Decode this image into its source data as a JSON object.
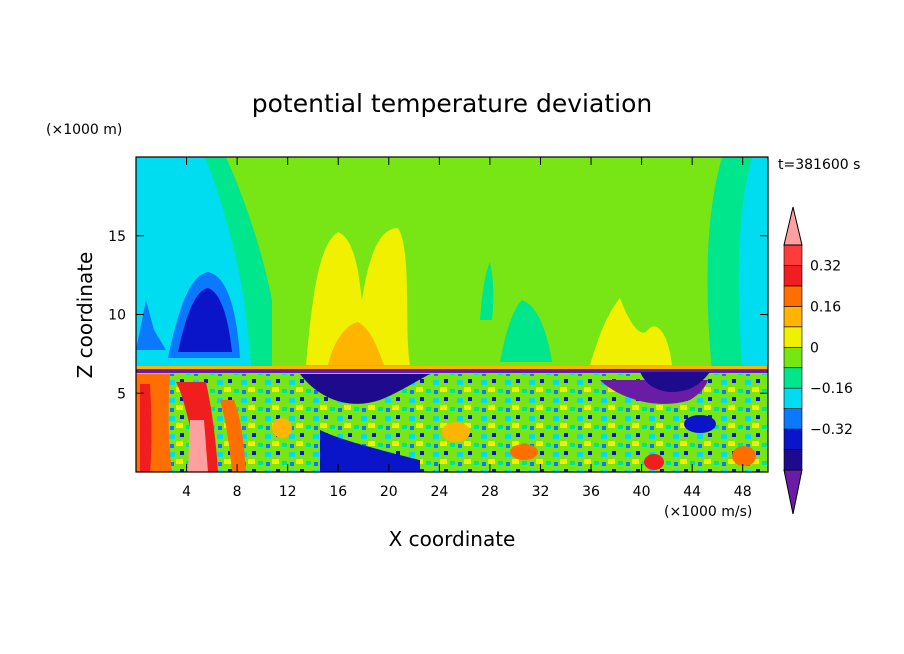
{
  "chart_data": {
    "type": "heatmap",
    "title": "potential temperature deviation",
    "xlabel": "X coordinate",
    "ylabel": "Z coordinate",
    "x_unit_label": "(×1000 m/s)",
    "y_unit_label": "(×1000 m)",
    "time_label": "t=381600 s",
    "xlim": [
      0,
      50
    ],
    "ylim": [
      0,
      20
    ],
    "x_ticks": [
      4,
      8,
      12,
      16,
      20,
      24,
      28,
      32,
      36,
      40,
      44,
      48
    ],
    "y_ticks": [
      5,
      10,
      15
    ],
    "colorbar": {
      "levels": [
        -0.48,
        -0.4,
        -0.32,
        -0.24,
        -0.16,
        -0.08,
        0,
        0.08,
        0.16,
        0.24,
        0.32,
        0.4
      ],
      "tick_values": [
        -0.32,
        -0.16,
        0,
        0.16,
        0.32
      ],
      "tick_labels": [
        "−0.32",
        "−0.16",
        "0",
        "0.16",
        "0.32"
      ],
      "colors": [
        "#6a1ca6",
        "#1e0a8c",
        "#0a14c8",
        "#0a78ff",
        "#00dcf0",
        "#00e68c",
        "#78e614",
        "#f0f000",
        "#ffb400",
        "#ff6e00",
        "#f01e1e",
        "#ff3c3c",
        "#ffa0a0"
      ],
      "extend": "both"
    }
  }
}
